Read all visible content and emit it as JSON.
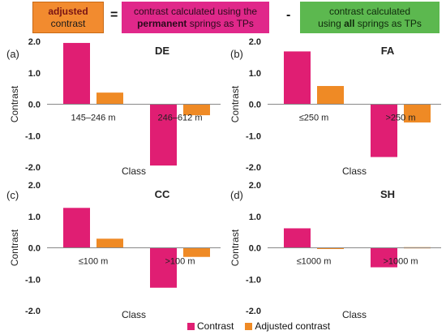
{
  "header": {
    "adjusted_line1": "adjusted",
    "adjusted_line2": "contrast",
    "equals": "=",
    "minus": "-",
    "permanent_line1": "contrast calculated using the",
    "permanent_bold": "permanent",
    "permanent_line2_rest": " springs as TPs",
    "all_line1": "contrast calculated",
    "all_pre": "using ",
    "all_bold": "all",
    "all_post": " springs as TPs"
  },
  "legend": {
    "contrast_label": "Contrast",
    "adjusted_label": "Adjusted contrast"
  },
  "colors": {
    "contrast": "#e01e73",
    "adjusted": "#ef8a25",
    "adjusted_box": "#f28b2f",
    "permanent_box": "#e0288a",
    "all_box": "#5cb84f"
  },
  "chart_data": [
    {
      "type": "bar",
      "panel": "(a)",
      "title": "DE",
      "categories": [
        "145–246 m",
        "246–612 m"
      ],
      "series": [
        {
          "name": "Contrast",
          "values": [
            1.95,
            -1.95
          ]
        },
        {
          "name": "Adjusted contrast",
          "values": [
            0.37,
            -0.35
          ]
        }
      ],
      "xlabel": "Class",
      "ylabel": "Contrast",
      "ylim": [
        -2.0,
        2.0
      ],
      "yticks": [
        "2.0",
        "1.0",
        "0.0",
        "-1.0",
        "-2.0"
      ]
    },
    {
      "type": "bar",
      "panel": "(b)",
      "title": "FA",
      "categories": [
        "≤250 m",
        ">250 m"
      ],
      "series": [
        {
          "name": "Contrast",
          "values": [
            1.68,
            -1.68
          ]
        },
        {
          "name": "Adjusted contrast",
          "values": [
            0.58,
            -0.58
          ]
        }
      ],
      "xlabel": "Class",
      "ylabel": "Contrast",
      "ylim": [
        -2.0,
        2.0
      ],
      "yticks": [
        "2.0",
        "1.0",
        "0.0",
        "-1.0",
        "-2.0"
      ]
    },
    {
      "type": "bar",
      "panel": "(c)",
      "title": "CC",
      "categories": [
        "≤100 m",
        ">100 m"
      ],
      "series": [
        {
          "name": "Contrast",
          "values": [
            1.27,
            -1.27
          ]
        },
        {
          "name": "Adjusted contrast",
          "values": [
            0.29,
            -0.29
          ]
        }
      ],
      "xlabel": "Class",
      "ylabel": "Contrast",
      "ylim": [
        -2.0,
        2.0
      ],
      "yticks": [
        "2.0",
        "1.0",
        "0.0",
        "-1.0",
        "-2.0"
      ]
    },
    {
      "type": "bar",
      "panel": "(d)",
      "title": "SH",
      "categories": [
        "≤1000 m",
        ">1000 m"
      ],
      "series": [
        {
          "name": "Contrast",
          "values": [
            0.62,
            -0.62
          ]
        },
        {
          "name": "Adjusted contrast",
          "values": [
            -0.02,
            0.02
          ]
        }
      ],
      "xlabel": "Class",
      "ylabel": "Contrast",
      "ylim": [
        -2.0,
        2.0
      ],
      "yticks": [
        "2.0",
        "1.0",
        "0.0",
        "-1.0",
        "-2.0"
      ]
    }
  ]
}
